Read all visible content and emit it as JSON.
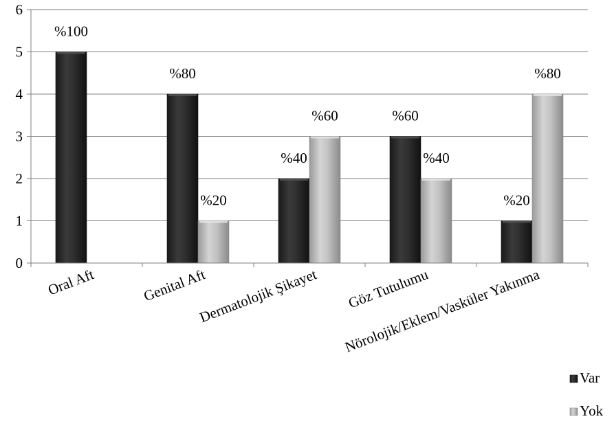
{
  "chart_data": {
    "type": "bar",
    "categories": [
      "Oral Aft",
      "Genital Aft",
      "Dermatolojik Şikayet",
      "Göz Tutulumu",
      "Nörolojik/Eklem/Vasküler Yakınma"
    ],
    "series": [
      {
        "name": "Var",
        "values": [
          5,
          4,
          2,
          3,
          1
        ],
        "labels": [
          "%100",
          "%80",
          "%40",
          "%60",
          "%20"
        ],
        "color": "#2b2b2b"
      },
      {
        "name": "Yok",
        "values": [
          0,
          1,
          3,
          2,
          4
        ],
        "labels": [
          "",
          "%20",
          "%60",
          "%40",
          "%80"
        ],
        "color": "#b8b8b8"
      }
    ],
    "ylim": [
      0,
      6
    ],
    "yticks": [
      "0",
      "1",
      "2",
      "3",
      "4",
      "5",
      "6"
    ],
    "grid": true,
    "legend": "bottom-right"
  }
}
